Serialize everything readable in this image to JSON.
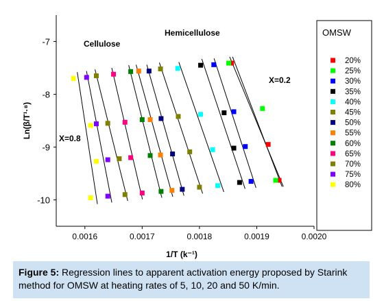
{
  "chart_data": {
    "type": "scatter",
    "xlabel": "1/T (k⁻¹)",
    "ylabel": "Ln(β/T¹·⁸)",
    "xlim": [
      0.00155,
      0.002
    ],
    "ylim": [
      -10.5,
      -6.5
    ],
    "xticks": [
      "0.0016",
      "0.0017",
      "0.0018",
      "0.0019",
      "0.0020"
    ],
    "yticks": [
      "-7",
      "-8",
      "-9",
      "-10"
    ],
    "legend_title": "OMSW",
    "legend_position": "right",
    "annotations": {
      "cellulose": "Cellulose",
      "hemicellulose": "Hemicellulose",
      "x02": "X=0.2",
      "x08": "X=0.8"
    },
    "series": [
      {
        "name": "20%",
        "color": "#ff0000",
        "x": [
          0.001856,
          0.00192,
          0.001939
        ],
        "y": [
          -7.41,
          -8.95,
          -9.63
        ]
      },
      {
        "name": "25%",
        "color": "#00ff00",
        "x": [
          0.001851,
          0.00191,
          0.001933
        ],
        "y": [
          -7.41,
          -8.27,
          -9.63
        ]
      },
      {
        "name": "30%",
        "color": "#0000ff",
        "x": [
          0.001825,
          0.00186,
          0.00188,
          0.00189
        ],
        "y": [
          -7.44,
          -8.33,
          -8.99,
          -9.65
        ]
      },
      {
        "name": "35%",
        "color": "#000000",
        "x": [
          0.001802,
          0.001843,
          0.00186,
          0.00187
        ],
        "y": [
          -7.45,
          -8.35,
          -9.02,
          -9.67
        ]
      },
      {
        "name": "40%",
        "color": "#00ffff",
        "x": [
          0.001762,
          0.001802,
          0.001823,
          0.001832
        ],
        "y": [
          -7.51,
          -8.38,
          -9.05,
          -9.73
        ]
      },
      {
        "name": "45%",
        "color": "#808000",
        "x": [
          0.001732,
          0.001763,
          0.001783,
          0.0018
        ],
        "y": [
          -7.52,
          -8.42,
          -9.09,
          -9.76
        ]
      },
      {
        "name": "50%",
        "color": "#000080",
        "x": [
          0.001712,
          0.001733,
          0.001753,
          0.00177
        ],
        "y": [
          -7.56,
          -8.46,
          -9.13,
          -9.8
        ]
      },
      {
        "name": "55%",
        "color": "#ff8000",
        "x": [
          0.001694,
          0.001714,
          0.001732,
          0.001752
        ],
        "y": [
          -7.56,
          -8.48,
          -9.15,
          -9.82
        ]
      },
      {
        "name": "60%",
        "color": "#008000",
        "x": [
          0.00168,
          0.0017,
          0.001714,
          0.001733
        ],
        "y": [
          -7.57,
          -8.48,
          -9.16,
          -9.84
        ]
      },
      {
        "name": "65%",
        "color": "#ff0080",
        "x": [
          0.00165,
          0.00167,
          0.00168,
          0.0017
        ],
        "y": [
          -7.62,
          -8.53,
          -9.2,
          -9.87
        ]
      },
      {
        "name": "70%",
        "color": "#808000",
        "x": [
          0.00162,
          0.00164,
          0.00166,
          0.00167
        ],
        "y": [
          -7.65,
          -8.55,
          -9.22,
          -9.9
        ]
      },
      {
        "name": "75%",
        "color": "#8000ff",
        "x": [
          0.001603,
          0.00162,
          0.00164,
          0.00164
        ],
        "y": [
          -7.68,
          -8.56,
          -9.24,
          -9.93
        ]
      },
      {
        "name": "80%",
        "color": "#ffff00",
        "x": [
          0.00158,
          0.00161,
          0.00162,
          0.00161
        ],
        "y": [
          -7.7,
          -8.59,
          -9.27,
          -9.96
        ]
      }
    ]
  },
  "caption": {
    "label": "Figure 5:",
    "text": " Regression lines to apparent activation energy proposed by Starink method for OMSW at heating rates of 5, 10, 20 and 50 K/min."
  }
}
